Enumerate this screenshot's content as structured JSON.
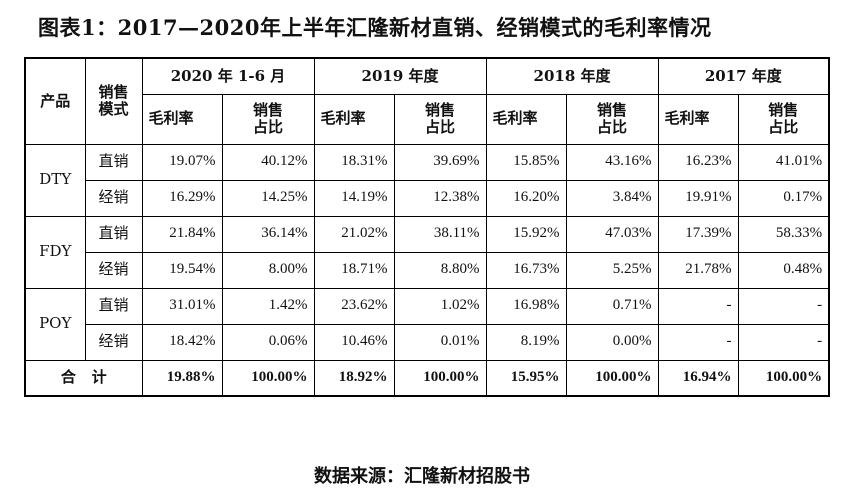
{
  "title": "图表1：2017—2020年上半年汇隆新材直销、经销模式的毛利率情况",
  "header": {
    "product": "产品",
    "mode_line1": "销售",
    "mode_line2": "模式",
    "periods": [
      "2020 年 1-6 月",
      "2019 年度",
      "2018 年度",
      "2017 年度"
    ],
    "gross_margin": "毛利率",
    "share_line1": "销售",
    "share_line2": "占比"
  },
  "groups": [
    {
      "product": "DTY",
      "rows": [
        {
          "mode": "直销",
          "values": [
            "19.07%",
            "40.12%",
            "18.31%",
            "39.69%",
            "15.85%",
            "43.16%",
            "16.23%",
            "41.01%"
          ]
        },
        {
          "mode": "经销",
          "values": [
            "16.29%",
            "14.25%",
            "14.19%",
            "12.38%",
            "16.20%",
            "3.84%",
            "19.91%",
            "0.17%"
          ]
        }
      ]
    },
    {
      "product": "FDY",
      "rows": [
        {
          "mode": "直销",
          "values": [
            "21.84%",
            "36.14%",
            "21.02%",
            "38.11%",
            "15.92%",
            "47.03%",
            "17.39%",
            "58.33%"
          ]
        },
        {
          "mode": "经销",
          "values": [
            "19.54%",
            "8.00%",
            "18.71%",
            "8.80%",
            "16.73%",
            "5.25%",
            "21.78%",
            "0.48%"
          ]
        }
      ]
    },
    {
      "product": "POY",
      "rows": [
        {
          "mode": "直销",
          "values": [
            "31.01%",
            "1.42%",
            "23.62%",
            "1.02%",
            "16.98%",
            "0.71%",
            "-",
            "-"
          ]
        },
        {
          "mode": "经销",
          "values": [
            "18.42%",
            "0.06%",
            "10.46%",
            "0.01%",
            "8.19%",
            "0.00%",
            "-",
            "-"
          ]
        }
      ]
    }
  ],
  "total": {
    "label": "合   计",
    "values": [
      "19.88%",
      "100.00%",
      "18.92%",
      "100.00%",
      "15.95%",
      "100.00%",
      "16.94%",
      "100.00%"
    ]
  },
  "source": "数据来源：汇隆新材招股书"
}
